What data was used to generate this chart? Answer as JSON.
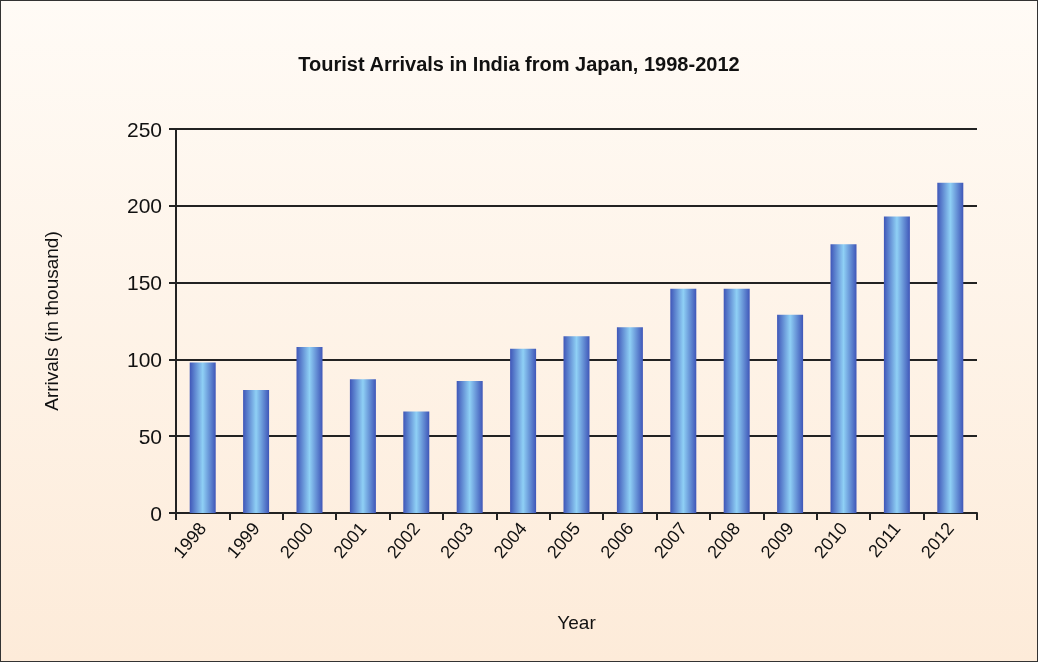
{
  "chart_data": {
    "type": "bar",
    "title": "Tourist Arrivals in India from Japan, 1998-2012",
    "xlabel": "Year",
    "ylabel": "Arrivals (in thousand)",
    "categories": [
      "1998",
      "1999",
      "2000",
      "2001",
      "2002",
      "2003",
      "2004",
      "2005",
      "2006",
      "2007",
      "2008",
      "2009",
      "2010",
      "2011",
      "2012"
    ],
    "values": [
      98,
      80,
      108,
      87,
      66,
      86,
      107,
      115,
      121,
      146,
      146,
      129,
      175,
      193,
      215
    ],
    "color": "#3f56b8",
    "ylim": [
      0,
      250
    ],
    "yticks": [
      0,
      50,
      100,
      150,
      200,
      250
    ],
    "grid": "y"
  }
}
